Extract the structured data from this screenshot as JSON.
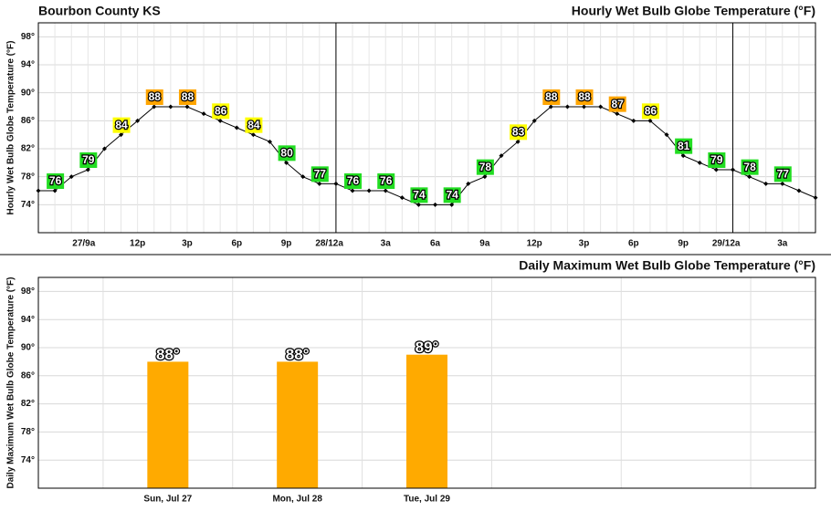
{
  "header": {
    "title": "Bourbon County KS"
  },
  "chart_data": [
    {
      "type": "line",
      "title": "Hourly Wet Bulb Globe Temperature (°F)",
      "y_label": "Hourly Wet Bulb Globe Temperature (°F)",
      "categories": [
        null,
        null,
        null,
        "27/9a",
        null,
        null,
        "12p",
        null,
        null,
        "3p",
        null,
        null,
        "6p",
        null,
        null,
        "9p",
        null,
        null,
        "28/12a",
        null,
        null,
        "3a",
        null,
        null,
        "6a",
        null,
        null,
        "9a",
        null,
        null,
        "12p",
        null,
        null,
        "3p",
        null,
        null,
        "6p",
        null,
        null,
        "9p",
        null,
        null,
        "29/12a",
        null,
        null,
        "3a",
        null,
        null
      ],
      "values": [
        76,
        76,
        78,
        79,
        82,
        84,
        86,
        88,
        88,
        88,
        87,
        86,
        85,
        84,
        83,
        80,
        78,
        77,
        77,
        76,
        76,
        76,
        75,
        74,
        74,
        74,
        77,
        78,
        81,
        83,
        86,
        88,
        88,
        88,
        88,
        87,
        86,
        86,
        84,
        81,
        80,
        79,
        79,
        78,
        77,
        77,
        76,
        75
      ],
      "value_labels": [
        null,
        "76",
        null,
        "79",
        null,
        "84",
        null,
        "88",
        null,
        "88",
        null,
        "86",
        null,
        "84",
        null,
        "80",
        null,
        "77",
        null,
        "76",
        null,
        "76",
        null,
        "74",
        null,
        "74",
        null,
        "78",
        null,
        "83",
        null,
        "88",
        null,
        "88",
        null,
        "87",
        null,
        "86",
        null,
        "81",
        null,
        "79",
        null,
        "78",
        null,
        "77",
        null,
        null
      ],
      "value_label_colors": [
        null,
        "#22dd22",
        null,
        "#22dd22",
        null,
        "#ffff00",
        null,
        "#ffa500",
        null,
        "#ffa500",
        null,
        "#ffff00",
        null,
        "#ffff00",
        null,
        "#22dd22",
        null,
        "#22dd22",
        null,
        "#22dd22",
        null,
        "#22dd22",
        null,
        "#22dd22",
        null,
        "#22dd22",
        null,
        "#22dd22",
        null,
        "#ffff00",
        null,
        "#ffa500",
        null,
        "#ffa500",
        null,
        "#ffa500",
        null,
        "#ffff00",
        null,
        "#22dd22",
        null,
        "#22dd22",
        null,
        "#22dd22",
        null,
        "#22dd22",
        null,
        null
      ],
      "color": "#000000",
      "ylim": [
        70,
        100
      ],
      "yticks": [
        {
          "value": 74,
          "label": "74°"
        },
        {
          "value": 78,
          "label": "78°"
        },
        {
          "value": 82,
          "label": "82°"
        },
        {
          "value": 86,
          "label": "86°"
        },
        {
          "value": 90,
          "label": "90°"
        },
        {
          "value": 94,
          "label": "94°"
        },
        {
          "value": 98,
          "label": "98°"
        }
      ],
      "grid": true
    },
    {
      "type": "bar",
      "title": "Daily Maximum Wet Bulb Globe Temperature (°F)",
      "y_label": "Daily Maximum Wet Bulb Globe Temperature (°F)",
      "categories": [
        "Sun, Jul 27",
        "Mon, Jul 28",
        "Tue, Jul 29"
      ],
      "values": [
        88,
        88,
        89
      ],
      "value_labels": [
        "88°",
        "88°",
        "89°"
      ],
      "color": "#ffaa00",
      "ylim": [
        70,
        100
      ],
      "yticks": [
        {
          "value": 74,
          "label": "74°"
        },
        {
          "value": 78,
          "label": "78°"
        },
        {
          "value": 82,
          "label": "82°"
        },
        {
          "value": 86,
          "label": "86°"
        },
        {
          "value": 90,
          "label": "90°"
        },
        {
          "value": 94,
          "label": "94°"
        },
        {
          "value": 98,
          "label": "98°"
        }
      ],
      "grid": true
    }
  ]
}
